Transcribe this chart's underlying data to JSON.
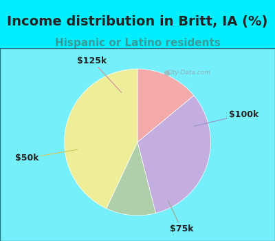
{
  "title": "Income distribution in Britt, IA (%)",
  "subtitle": "Hispanic or Latino residents",
  "slices": [
    {
      "label": "$125k",
      "value": 14,
      "color": "#F5AAAA"
    },
    {
      "label": "$100k",
      "value": 32,
      "color": "#C4AEE0"
    },
    {
      "label": "$75k",
      "value": 11,
      "color": "#AECFAA"
    },
    {
      "label": "$50k",
      "value": 43,
      "color": "#EEEE99"
    }
  ],
  "start_angle": 90,
  "background_color": "#00EEFF",
  "chart_bg_left": "#C8EDD8",
  "chart_bg_right": "#E0ECFA",
  "title_fontsize": 14,
  "subtitle_fontsize": 11,
  "label_fontsize": 9,
  "watermark": "City-Data.com",
  "title_color": "#222222",
  "subtitle_color": "#3A9A9A"
}
